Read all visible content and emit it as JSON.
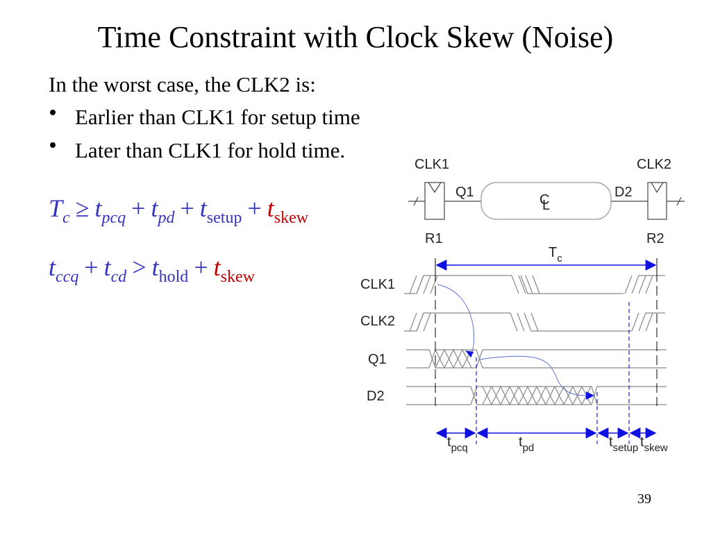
{
  "title": "Time Constraint with Clock Skew (Noise)",
  "intro": "In the worst case, the CLK2 is:",
  "bullets": [
    "Earlier than CLK1 for setup time",
    "Later than CLK1 for hold time."
  ],
  "equations": [
    {
      "terms": [
        {
          "main": "T",
          "sub": "c"
        },
        {
          "main": "t",
          "sub": "pcq"
        },
        {
          "main": "t",
          "sub": "pd"
        },
        {
          "main": "t",
          "sub": "setup"
        },
        {
          "main": "t",
          "sub": "skew"
        }
      ],
      "operators": [
        "≥",
        "+",
        "+",
        "+"
      ]
    },
    {
      "terms": [
        {
          "main": "t",
          "sub": "ccq"
        },
        {
          "main": "t",
          "sub": "cd"
        },
        {
          "main": "t",
          "sub": "hold"
        },
        {
          "main": "t",
          "sub": "skew"
        }
      ],
      "operators": [
        "+",
        ">",
        "+"
      ]
    }
  ],
  "diagram": {
    "clk_labels": [
      "CLK1",
      "CLK2"
    ],
    "node_labels": [
      "Q1",
      "D2"
    ],
    "logic_labels": [
      "C",
      "L"
    ],
    "registers": [
      "R1",
      "R2"
    ],
    "period": {
      "main": "T",
      "sub": "c"
    },
    "signals": [
      "CLK1",
      "CLK2",
      "Q1",
      "D2"
    ],
    "timing": [
      {
        "main": "t",
        "sub": "pcq"
      },
      {
        "main": "t",
        "sub": "pd"
      },
      {
        "main": "t",
        "sub": "setup"
      },
      {
        "main": "t",
        "sub": "skew"
      }
    ]
  },
  "page_number": "39"
}
